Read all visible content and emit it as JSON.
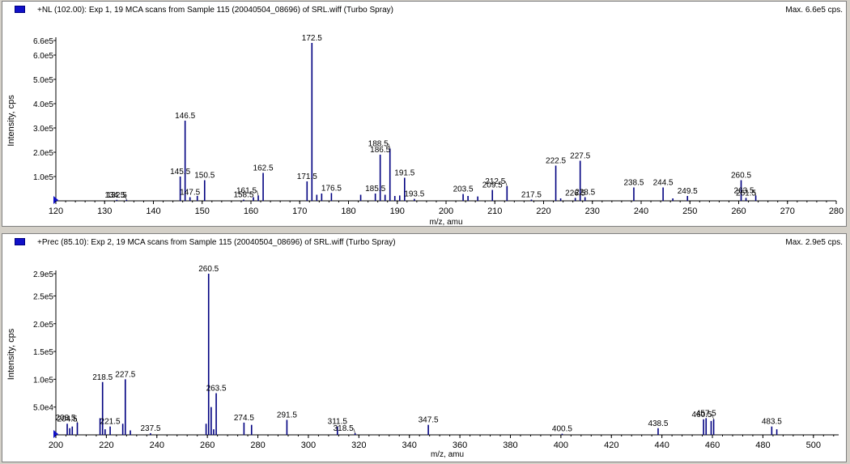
{
  "colors": {
    "peak": "#000080",
    "axis": "#000000",
    "label_leader": "#000000",
    "marker": "#1010c8"
  },
  "panes": [
    {
      "title": "+NL (102.00): Exp 1, 19 MCA scans from Sample 115 (20040504_08696) of SRL.wiff (Turbo Spray)",
      "max_label": "Max. 6.6e5 cps."
    },
    {
      "title": "+Prec (85.10): Exp 2, 19 MCA scans from Sample 115 (20040504_08696) of SRL.wiff (Turbo Spray)",
      "max_label": "Max. 2.9e5 cps."
    }
  ],
  "chart_data": [
    {
      "type": "bar",
      "xlabel": "m/z, amu",
      "ylabel": "Intensity, cps",
      "xlim": [
        120,
        280
      ],
      "ylim": [
        0,
        660000
      ],
      "x_ticks": [
        {
          "v": 120,
          "label": "120"
        },
        {
          "v": 130,
          "label": "130"
        },
        {
          "v": 140,
          "label": "140"
        },
        {
          "v": 150,
          "label": "150"
        },
        {
          "v": 160,
          "label": "160"
        },
        {
          "v": 170,
          "label": "170"
        },
        {
          "v": 180,
          "label": "180"
        },
        {
          "v": 190,
          "label": "190"
        },
        {
          "v": 200,
          "label": "200"
        },
        {
          "v": 210,
          "label": "210"
        },
        {
          "v": 220,
          "label": "220"
        },
        {
          "v": 230,
          "label": "230"
        },
        {
          "v": 240,
          "label": "240"
        },
        {
          "v": 250,
          "label": "250"
        },
        {
          "v": 260,
          "label": "260"
        },
        {
          "v": 270,
          "label": "270"
        },
        {
          "v": 280,
          "label": "280"
        }
      ],
      "y_ticks": [
        {
          "v": 100000,
          "label": "1.0e5"
        },
        {
          "v": 200000,
          "label": "2.0e5"
        },
        {
          "v": 300000,
          "label": "3.0e5"
        },
        {
          "v": 400000,
          "label": "4.0e5"
        },
        {
          "v": 500000,
          "label": "5.0e5"
        },
        {
          "v": 600000,
          "label": "6.0e5"
        },
        {
          "v": 660000,
          "label": "6.6e5"
        }
      ],
      "peaks": [
        {
          "x": 132.5,
          "y": 4000,
          "label": "132.5"
        },
        {
          "x": 134.5,
          "y": 4000,
          "label": "134.5"
        },
        {
          "x": 145.5,
          "y": 100000,
          "label": "145.5"
        },
        {
          "x": 146.5,
          "y": 330000,
          "label": "146.5"
        },
        {
          "x": 147.5,
          "y": 15000,
          "label": "147.5"
        },
        {
          "x": 149.0,
          "y": 20000,
          "label": ""
        },
        {
          "x": 150.5,
          "y": 85000,
          "label": "150.5"
        },
        {
          "x": 158.5,
          "y": 5000,
          "label": "158.5"
        },
        {
          "x": 160.5,
          "y": 15000,
          "label": ""
        },
        {
          "x": 161.5,
          "y": 22000,
          "label": "161.5"
        },
        {
          "x": 162.5,
          "y": 115000,
          "label": "162.5"
        },
        {
          "x": 171.5,
          "y": 80000,
          "label": "171.5"
        },
        {
          "x": 172.5,
          "y": 650000,
          "label": "172.5"
        },
        {
          "x": 173.5,
          "y": 25000,
          "label": ""
        },
        {
          "x": 174.5,
          "y": 30000,
          "label": ""
        },
        {
          "x": 176.5,
          "y": 32000,
          "label": "176.5"
        },
        {
          "x": 182.5,
          "y": 25000,
          "label": ""
        },
        {
          "x": 185.5,
          "y": 30000,
          "label": "185.5"
        },
        {
          "x": 186.5,
          "y": 190000,
          "label": "186.5"
        },
        {
          "x": 187.5,
          "y": 25000,
          "label": ""
        },
        {
          "x": 188.5,
          "y": 215000,
          "label": "188.5"
        },
        {
          "x": 189.5,
          "y": 20000,
          "label": ""
        },
        {
          "x": 190.5,
          "y": 22000,
          "label": ""
        },
        {
          "x": 191.5,
          "y": 95000,
          "label": "191.5"
        },
        {
          "x": 193.5,
          "y": 8000,
          "label": "193.5"
        },
        {
          "x": 203.5,
          "y": 28000,
          "label": "203.5"
        },
        {
          "x": 204.5,
          "y": 20000,
          "label": ""
        },
        {
          "x": 206.5,
          "y": 18000,
          "label": ""
        },
        {
          "x": 209.5,
          "y": 45000,
          "label": "209.5"
        },
        {
          "x": 212.5,
          "y": 60000,
          "label": "212.5"
        },
        {
          "x": 217.5,
          "y": 5000,
          "label": "217.5"
        },
        {
          "x": 222.5,
          "y": 145000,
          "label": "222.5"
        },
        {
          "x": 223.5,
          "y": 10000,
          "label": ""
        },
        {
          "x": 226.5,
          "y": 12000,
          "label": "226.5"
        },
        {
          "x": 227.5,
          "y": 165000,
          "label": "227.5"
        },
        {
          "x": 228.5,
          "y": 15000,
          "label": "228.5"
        },
        {
          "x": 238.5,
          "y": 55000,
          "label": "238.5"
        },
        {
          "x": 244.5,
          "y": 55000,
          "label": "244.5"
        },
        {
          "x": 246.5,
          "y": 10000,
          "label": ""
        },
        {
          "x": 249.5,
          "y": 20000,
          "label": "249.5"
        },
        {
          "x": 260.5,
          "y": 85000,
          "label": "260.5"
        },
        {
          "x": 261.5,
          "y": 12000,
          "label": "261.5"
        },
        {
          "x": 263.5,
          "y": 22000,
          "label": "263.5"
        }
      ]
    },
    {
      "type": "bar",
      "xlabel": "m/z, amu",
      "ylabel": "Intensity, cps",
      "xlim": [
        200,
        510
      ],
      "ylim": [
        0,
        290000
      ],
      "x_ticks": [
        {
          "v": 200,
          "label": "200"
        },
        {
          "v": 220,
          "label": "220"
        },
        {
          "v": 240,
          "label": "240"
        },
        {
          "v": 260,
          "label": "260"
        },
        {
          "v": 280,
          "label": "280"
        },
        {
          "v": 300,
          "label": "300"
        },
        {
          "v": 320,
          "label": "320"
        },
        {
          "v": 340,
          "label": "340"
        },
        {
          "v": 360,
          "label": "360"
        },
        {
          "v": 380,
          "label": "380"
        },
        {
          "v": 400,
          "label": "400"
        },
        {
          "v": 420,
          "label": "420"
        },
        {
          "v": 440,
          "label": "440"
        },
        {
          "v": 460,
          "label": "460"
        },
        {
          "v": 480,
          "label": "480"
        },
        {
          "v": 500,
          "label": "500"
        }
      ],
      "y_ticks": [
        {
          "v": 50000,
          "label": "5.0e4"
        },
        {
          "v": 100000,
          "label": "1.0e5"
        },
        {
          "v": 150000,
          "label": "1.5e5"
        },
        {
          "v": 200000,
          "label": "2.0e5"
        },
        {
          "v": 250000,
          "label": "2.5e5"
        },
        {
          "v": 290000,
          "label": "2.9e5"
        }
      ],
      "peaks": [
        {
          "x": 204.5,
          "y": 20000,
          "label": "204.5"
        },
        {
          "x": 205.5,
          "y": 12000,
          "label": ""
        },
        {
          "x": 206.5,
          "y": 15000,
          "label": ""
        },
        {
          "x": 208.5,
          "y": 22000,
          "label": "208.5"
        },
        {
          "x": 217.5,
          "y": 30000,
          "label": ""
        },
        {
          "x": 218.5,
          "y": 95000,
          "label": "218.5"
        },
        {
          "x": 219.5,
          "y": 10000,
          "label": ""
        },
        {
          "x": 221.5,
          "y": 15000,
          "label": "221.5"
        },
        {
          "x": 226.5,
          "y": 20000,
          "label": ""
        },
        {
          "x": 227.5,
          "y": 100000,
          "label": "227.5"
        },
        {
          "x": 229.5,
          "y": 8000,
          "label": ""
        },
        {
          "x": 237.5,
          "y": 3000,
          "label": "237.5"
        },
        {
          "x": 259.5,
          "y": 20000,
          "label": ""
        },
        {
          "x": 260.5,
          "y": 290000,
          "label": "260.5"
        },
        {
          "x": 261.5,
          "y": 50000,
          "label": ""
        },
        {
          "x": 262.5,
          "y": 10000,
          "label": ""
        },
        {
          "x": 263.5,
          "y": 75000,
          "label": "263.5"
        },
        {
          "x": 274.5,
          "y": 22000,
          "label": "274.5"
        },
        {
          "x": 277.5,
          "y": 18000,
          "label": ""
        },
        {
          "x": 291.5,
          "y": 27000,
          "label": "291.5"
        },
        {
          "x": 311.5,
          "y": 15000,
          "label": "311.5"
        },
        {
          "x": 318.5,
          "y": 3000,
          "label": "318.5"
        },
        {
          "x": 347.5,
          "y": 18000,
          "label": "347.5"
        },
        {
          "x": 400.5,
          "y": 2000,
          "label": "400.5"
        },
        {
          "x": 438.5,
          "y": 12000,
          "label": "438.5"
        },
        {
          "x": 456.5,
          "y": 28000,
          "label": ""
        },
        {
          "x": 457.5,
          "y": 30000,
          "label": "457.5"
        },
        {
          "x": 459.5,
          "y": 25000,
          "label": ""
        },
        {
          "x": 460.5,
          "y": 28000,
          "label": "460.5"
        },
        {
          "x": 483.5,
          "y": 15000,
          "label": "483.5"
        },
        {
          "x": 485.5,
          "y": 10000,
          "label": ""
        }
      ]
    }
  ]
}
